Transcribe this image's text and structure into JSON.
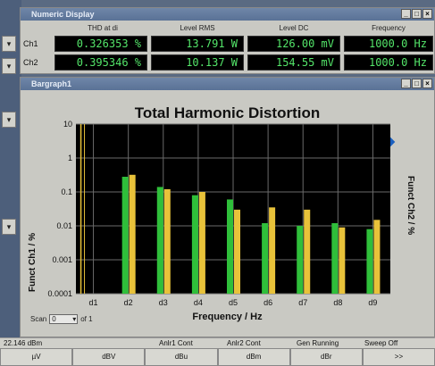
{
  "numeric_display": {
    "title": "Numeric Display",
    "headers": [
      "THD at di",
      "Level RMS",
      "Level DC",
      "Frequency"
    ],
    "rows": [
      {
        "label": "Ch1",
        "values": [
          "0.326353 %",
          "13.791 W",
          "126.00 mV",
          "1000.0 Hz"
        ]
      },
      {
        "label": "Ch2",
        "values": [
          "0.395346 %",
          "10.137 W",
          "154.55 mV",
          "1000.0 Hz"
        ]
      }
    ],
    "value_color": "#54e66a"
  },
  "bargraph": {
    "title": "Bargraph1",
    "scan_label": "Scan",
    "scan_value": "0",
    "scan_of": "of 1"
  },
  "chart_data": {
    "type": "bar",
    "title": "Total Harmonic Distortion",
    "xlabel": "Frequency / Hz",
    "ylabel_left": "Funct Ch1 / %",
    "ylabel_right": "Funct Ch2 / %",
    "scale": "log",
    "ylim": [
      0.0001,
      10
    ],
    "y_ticks": [
      "10",
      "1",
      "0.1",
      "0.01",
      "0.001",
      "0.0001"
    ],
    "categories": [
      "d1",
      "d2",
      "d3",
      "d4",
      "d5",
      "d6",
      "d7",
      "d8",
      "d9"
    ],
    "series": [
      {
        "color": "#2fbf3a",
        "values": [
          null,
          0.28,
          0.14,
          0.08,
          0.06,
          0.012,
          0.01,
          0.012,
          0.008
        ]
      },
      {
        "color": "#e8c23a",
        "values": [
          null,
          0.32,
          0.12,
          0.1,
          0.03,
          0.035,
          0.03,
          0.009,
          0.015
        ]
      }
    ],
    "grid": true,
    "background": "#000000"
  },
  "status_bar": {
    "items": [
      "22.146 dBm",
      "Anlr1 Cont",
      "Anlr2 Cont",
      "Gen Running",
      "Sweep Off"
    ]
  },
  "softkeys": [
    "µV",
    "dBV",
    "dBu",
    "dBm",
    "dBr",
    ">>"
  ]
}
